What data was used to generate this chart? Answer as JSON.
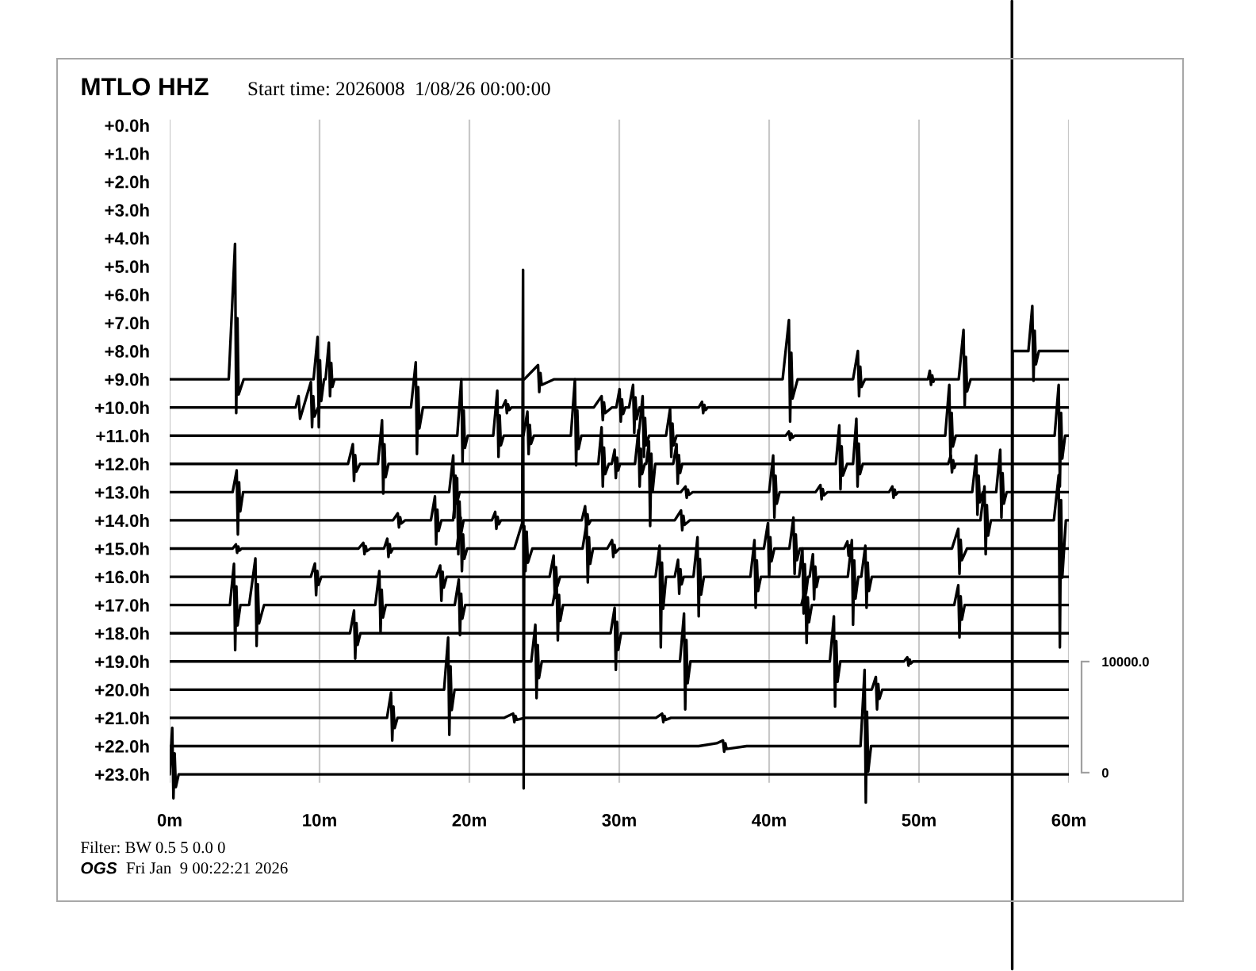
{
  "chart_data": {
    "type": "line",
    "title": "MTLO HHZ",
    "subtitle": "Start time: 2026008  1/08/26 00:00:00",
    "annotations": [
      "Filter: BW 0.5 5 0.0 0",
      "OGS",
      "Fri Jan  9 00:22:21 2026"
    ],
    "xlim": [
      0,
      60
    ],
    "xticks": [
      {
        "value": 0,
        "label": "0m"
      },
      {
        "value": 10,
        "label": "10m"
      },
      {
        "value": 20,
        "label": "20m"
      },
      {
        "value": 30,
        "label": "30m"
      },
      {
        "value": 40,
        "label": "40m"
      },
      {
        "value": 50,
        "label": "50m"
      },
      {
        "value": 60,
        "label": "60m"
      }
    ],
    "ylim": [
      29.97,
      -4.44
    ],
    "yticks": [
      {
        "value": 0,
        "label": "+0.0h"
      },
      {
        "value": 1,
        "label": "+1.0h"
      },
      {
        "value": 2,
        "label": "+2.0h"
      },
      {
        "value": 3,
        "label": "+3.0h"
      },
      {
        "value": 4,
        "label": "+4.0h"
      },
      {
        "value": 5,
        "label": "+5.0h"
      },
      {
        "value": 6,
        "label": "+6.0h"
      },
      {
        "value": 7,
        "label": "+7.0h"
      },
      {
        "value": 8,
        "label": "+8.0h"
      },
      {
        "value": 9,
        "label": "+9.0h"
      },
      {
        "value": 10,
        "label": "+10.0h"
      },
      {
        "value": 11,
        "label": "+11.0h"
      },
      {
        "value": 12,
        "label": "+12.0h"
      },
      {
        "value": 13,
        "label": "+13.0h"
      },
      {
        "value": 14,
        "label": "+14.0h"
      },
      {
        "value": 15,
        "label": "+15.0h"
      },
      {
        "value": 16,
        "label": "+16.0h"
      },
      {
        "value": 17,
        "label": "+17.0h"
      },
      {
        "value": 18,
        "label": "+18.0h"
      },
      {
        "value": 19,
        "label": "+19.0h"
      },
      {
        "value": 20,
        "label": "+20.0h"
      },
      {
        "value": 21,
        "label": "+21.0h"
      },
      {
        "value": 22,
        "label": "+22.0h"
      },
      {
        "value": 23,
        "label": "+23.0h"
      }
    ],
    "y2lim": [
      -17860,
      69570
    ],
    "y2ticks": [
      0,
      {
        "value": 10000,
        "label": "10000.0"
      }
    ],
    "grid": "x",
    "series": [
      {
        "color": "#000000",
        "x": [
          56.2,
          56.22,
          56.25,
          56.3,
          57.3,
          57.56,
          57.64,
          57.72,
          57.8,
          58.0,
          60
        ],
        "values": [
          -4.4,
          29.9,
          8,
          8,
          8,
          6.4,
          9.05,
          7.28,
          8.47,
          8,
          8
        ]
      },
      {
        "color": "#000000",
        "x": [
          0,
          3.94,
          4.36,
          4.44,
          4.52,
          4.6,
          4.94,
          9.6,
          9.87,
          9.95,
          10.03,
          10.11,
          10.3,
          10.4,
          10.62,
          10.7,
          10.78,
          10.86,
          11.0,
          23.66,
          24.58,
          24.66,
          24.74,
          24.82,
          25.66,
          40.9,
          41.32,
          41.4,
          41.48,
          41.56,
          41.9,
          45.6,
          45.92,
          46.0,
          46.08,
          46.16,
          46.4,
          50.6,
          50.72,
          50.8,
          50.88,
          50.96,
          51.0,
          52.65,
          52.97,
          53.05,
          53.13,
          53.21,
          53.45,
          60
        ],
        "values": [
          9,
          9,
          4.2,
          10.2,
          6.84,
          9.54,
          9,
          9,
          7.5,
          10.7,
          8.33,
          9.77,
          9,
          9,
          7.7,
          9.6,
          8.42,
          9.27,
          9,
          9,
          8.5,
          9.45,
          8.78,
          9.2,
          9,
          9,
          6.9,
          10.5,
          8.06,
          9.68,
          9,
          9,
          8.0,
          9.6,
          8.55,
          9.27,
          9,
          9,
          8.7,
          9.2,
          8.86,
          9.09,
          9,
          9,
          7.25,
          9.95,
          8.21,
          9.43,
          9,
          9
        ]
      },
      {
        "color": "#000000",
        "x": [
          0,
          8.4,
          8.6,
          8.7,
          9.42,
          9.5,
          9.58,
          9.66,
          9.9,
          16.1,
          16.42,
          16.5,
          16.58,
          16.66,
          16.9,
          22.2,
          22.42,
          22.5,
          22.58,
          22.66,
          22.8,
          28.3,
          28.82,
          28.9,
          28.98,
          29.06,
          29.5,
          29.8,
          30.02,
          30.1,
          30.18,
          30.26,
          30.4,
          30.65,
          30.92,
          31.0,
          31.08,
          31.16,
          31.35,
          35.3,
          35.52,
          35.6,
          35.68,
          35.76,
          35.9,
          60
        ],
        "values": [
          10,
          10,
          9.6,
          10.4,
          9.1,
          10.7,
          9.6,
          10.32,
          10,
          10,
          8.4,
          11.65,
          9.28,
          10.74,
          10,
          10,
          9.75,
          10.2,
          9.89,
          10.09,
          10,
          10,
          9.6,
          10.45,
          9.82,
          10.2,
          10,
          10,
          9.35,
          10.5,
          9.71,
          10.23,
          10,
          10,
          9.2,
          10.9,
          9.64,
          10.41,
          10,
          10,
          9.8,
          10.2,
          9.91,
          10.09,
          10,
          10
        ]
      },
      {
        "color": "#000000",
        "x": [
          0,
          19.19,
          19.46,
          19.54,
          19.62,
          19.7,
          19.89,
          21.59,
          21.86,
          21.94,
          22.02,
          22.1,
          22.29,
          23.6,
          23.87,
          23.95,
          24.03,
          24.11,
          24.3,
          26.77,
          27.04,
          27.12,
          27.2,
          27.28,
          27.47,
          31.29,
          31.56,
          31.64,
          31.72,
          31.8,
          31.99,
          33.12,
          33.39,
          33.47,
          33.55,
          33.63,
          33.82,
          41.1,
          41.32,
          41.4,
          41.48,
          41.56,
          41.7,
          51.75,
          52.02,
          52.1,
          52.18,
          52.26,
          52.45,
          59.05,
          59.32,
          59.4,
          59.48,
          59.56,
          59.75,
          60
        ],
        "values": [
          11,
          11,
          9.0,
          11.95,
          10.1,
          11.43,
          11,
          11,
          9.4,
          11.75,
          10.28,
          11.34,
          11,
          11,
          10.15,
          11.65,
          10.62,
          11.29,
          11,
          11,
          9.0,
          12.05,
          10.1,
          11.47,
          11,
          11,
          9.6,
          11.75,
          10.37,
          11.34,
          11,
          11,
          10.05,
          11.75,
          10.57,
          11.34,
          11,
          11,
          10.85,
          11.15,
          10.93,
          11.07,
          11,
          11,
          9.2,
          11.85,
          10.19,
          11.38,
          11,
          11,
          9.2,
          12.8,
          10.19,
          11.81,
          11,
          11
        ]
      },
      {
        "color": "#000000",
        "x": [
          0,
          11.9,
          12.22,
          12.3,
          12.38,
          12.46,
          12.7,
          13.9,
          14.17,
          14.25,
          14.33,
          14.41,
          14.6,
          28.6,
          28.82,
          28.9,
          28.98,
          29.06,
          29.3,
          29.5,
          29.69,
          29.77,
          29.85,
          29.93,
          30.05,
          31.05,
          31.28,
          31.36,
          31.44,
          31.52,
          31.7,
          31.8,
          31.98,
          32.06,
          32.14,
          32.22,
          32.4,
          33.6,
          33.82,
          33.9,
          33.98,
          34.06,
          34.2,
          44.45,
          44.68,
          44.76,
          44.84,
          44.92,
          45.2,
          45.6,
          45.82,
          45.9,
          45.98,
          46.06,
          46.25,
          51.95,
          52.12,
          52.2,
          52.28,
          52.36,
          52.45,
          60
        ],
        "values": [
          12,
          12,
          11.3,
          12.6,
          11.69,
          12.27,
          12,
          12,
          10.45,
          13.05,
          11.3,
          12.47,
          12,
          12,
          10.7,
          12.8,
          11.42,
          12.36,
          12,
          12,
          11.5,
          12.5,
          11.78,
          12.23,
          12,
          12,
          10.8,
          12.8,
          11.46,
          12.36,
          12,
          12,
          11.2,
          14.2,
          11.64,
          12.99,
          12,
          12,
          11.3,
          12.7,
          11.69,
          12.32,
          12,
          12,
          10.63,
          12.9,
          11.38,
          12.41,
          12,
          12,
          10.4,
          12.8,
          11.28,
          12.36,
          12,
          12,
          11.7,
          12.3,
          11.87,
          12.14,
          12,
          12
        ]
      },
      {
        "color": "#000000",
        "x": [
          0,
          4.2,
          4.47,
          4.55,
          4.63,
          4.71,
          4.9,
          18.65,
          18.92,
          19.0,
          19.08,
          19.16,
          19.35,
          34.1,
          34.42,
          34.5,
          34.58,
          34.66,
          34.9,
          40.0,
          40.27,
          40.35,
          40.43,
          40.51,
          40.7,
          43.1,
          43.42,
          43.5,
          43.58,
          43.66,
          43.9,
          48.0,
          48.22,
          48.3,
          48.38,
          48.46,
          48.6,
          53.55,
          53.82,
          53.9,
          53.98,
          54.06,
          54.25,
          55.15,
          55.42,
          55.5,
          55.58,
          55.66,
          55.85,
          60
        ],
        "values": [
          13,
          13,
          12.23,
          14.5,
          12.65,
          13.68,
          13,
          13,
          11.7,
          13.9,
          12.42,
          13.41,
          13,
          13,
          12.8,
          13.2,
          12.91,
          13.09,
          13,
          13,
          11.7,
          13.9,
          12.42,
          13.41,
          13,
          13,
          12.75,
          13.25,
          12.89,
          13.11,
          13,
          13,
          12.8,
          13.2,
          12.91,
          13.09,
          13,
          13,
          11.7,
          13.8,
          12.42,
          13.36,
          13,
          13,
          11.5,
          13.9,
          12.33,
          13.41,
          13,
          13
        ]
      },
      {
        "color": "#000000",
        "x": [
          0,
          14.9,
          15.22,
          15.3,
          15.38,
          15.46,
          15.7,
          17.43,
          17.7,
          17.78,
          17.86,
          17.94,
          18.13,
          18.91,
          19.18,
          19.26,
          19.34,
          19.42,
          19.61,
          21.5,
          21.72,
          21.8,
          21.88,
          21.96,
          22.1,
          27.5,
          27.72,
          27.8,
          27.88,
          27.96,
          28.1,
          33.7,
          34.12,
          34.2,
          34.28,
          34.36,
          34.7,
          54.1,
          54.37,
          54.45,
          54.53,
          54.61,
          54.8,
          59.0,
          59.32,
          59.4,
          59.48,
          59.56,
          59.8,
          60
        ],
        "values": [
          14,
          14,
          13.75,
          14.25,
          13.89,
          14.11,
          14,
          14,
          13.15,
          14.85,
          13.62,
          14.38,
          14,
          14,
          12.5,
          15.2,
          13.33,
          14.54,
          14,
          14,
          13.7,
          14.3,
          13.87,
          14.14,
          14,
          14,
          13.5,
          14.3,
          13.78,
          14.14,
          14,
          14,
          13.65,
          14.35,
          13.84,
          14.16,
          14,
          14,
          12.8,
          15.2,
          13.46,
          14.54,
          14,
          14,
          12.4,
          18.5,
          13.28,
          16.03,
          14,
          14
        ]
      },
      {
        "color": "#000000",
        "x": [
          0,
          4.2,
          4.42,
          4.5,
          4.58,
          4.66,
          4.8,
          12.6,
          12.92,
          13.0,
          13.08,
          13.16,
          13.4,
          14.3,
          14.52,
          14.6,
          14.68,
          14.76,
          14.9,
          19.15,
          19.42,
          19.5,
          19.58,
          19.66,
          19.85,
          23.0,
          23.52,
          23.58,
          23.62,
          23.66,
          23.74,
          23.82,
          23.9,
          24.2,
          27.55,
          27.82,
          27.9,
          27.98,
          28.06,
          28.25,
          29.2,
          29.52,
          29.6,
          29.68,
          29.76,
          30.0,
          39.65,
          39.92,
          40.0,
          40.08,
          40.16,
          40.35,
          41.35,
          41.62,
          41.7,
          41.78,
          41.86,
          42.05,
          45.0,
          45.22,
          45.3,
          45.38,
          45.46,
          45.6,
          52.2,
          52.62,
          52.7,
          52.78,
          52.86,
          53.2,
          60
        ],
        "values": [
          15,
          15,
          14.85,
          15.15,
          14.93,
          15.07,
          15,
          15,
          14.8,
          15.2,
          14.91,
          15.09,
          15,
          15,
          14.65,
          15.3,
          14.84,
          15.14,
          15,
          15,
          13.9,
          15.8,
          14.5,
          15.36,
          15,
          15,
          14.1,
          5.12,
          23.5,
          14.2,
          15.8,
          14.4,
          15.5,
          15,
          15,
          14.1,
          16.2,
          14.6,
          15.54,
          15,
          15,
          14.7,
          15.3,
          14.87,
          15.14,
          15,
          15,
          14.1,
          16.0,
          14.6,
          15.45,
          15,
          15,
          13.9,
          15.9,
          14.5,
          15.41,
          15,
          15,
          14.75,
          15.25,
          14.89,
          15.11,
          15,
          15,
          14.3,
          15.9,
          14.69,
          15.41,
          15,
          15
        ]
      },
      {
        "color": "#000000",
        "x": [
          0,
          9.42,
          9.69,
          9.77,
          9.85,
          9.93,
          10.12,
          17.78,
          18.05,
          18.13,
          18.21,
          18.29,
          18.48,
          25.35,
          25.62,
          25.7,
          25.78,
          25.86,
          26.05,
          32.42,
          32.69,
          32.77,
          32.85,
          32.93,
          33.12,
          33.7,
          33.92,
          34.0,
          34.08,
          34.16,
          34.3,
          34.95,
          35.22,
          35.3,
          35.38,
          35.46,
          35.65,
          38.75,
          39.02,
          39.1,
          39.18,
          39.26,
          39.45,
          42.0,
          42.22,
          42.3,
          42.38,
          42.46,
          42.6,
          42.7,
          42.92,
          43.0,
          43.08,
          43.16,
          43.3,
          45.25,
          45.52,
          45.6,
          45.68,
          45.76,
          45.95,
          46.15,
          46.42,
          46.5,
          46.58,
          46.66,
          46.85,
          60
        ],
        "values": [
          16,
          16,
          15.53,
          16.65,
          15.79,
          16.29,
          16,
          16,
          15.6,
          16.85,
          15.82,
          16.38,
          16,
          16,
          15.25,
          16.75,
          15.66,
          16.34,
          16,
          16,
          14.9,
          18.5,
          15.5,
          17.13,
          16,
          16,
          15.4,
          16.6,
          15.73,
          16.27,
          16,
          16,
          14.6,
          17.4,
          15.37,
          16.63,
          16,
          16,
          14.7,
          17.1,
          15.42,
          16.5,
          16,
          16,
          15.0,
          17.3,
          15.55,
          16.59,
          16,
          16,
          15.2,
          16.8,
          15.64,
          16.36,
          16,
          16,
          14.7,
          17.7,
          15.42,
          16.77,
          16,
          16,
          14.9,
          17.1,
          15.5,
          16.5,
          16,
          16
        ]
      },
      {
        "color": "#000000",
        "x": [
          0,
          4.02,
          4.29,
          4.37,
          4.45,
          4.53,
          4.72,
          5.3,
          5.72,
          5.8,
          5.88,
          5.96,
          6.3,
          13.72,
          13.99,
          14.07,
          14.15,
          14.23,
          14.42,
          19.02,
          19.29,
          19.37,
          19.45,
          19.53,
          19.72,
          25.55,
          25.82,
          25.9,
          25.98,
          26.06,
          26.25,
          42.15,
          42.42,
          42.5,
          42.58,
          42.66,
          42.85,
          52.35,
          52.62,
          52.7,
          52.78,
          52.86,
          53.05,
          60
        ],
        "values": [
          17,
          17,
          15.54,
          18.6,
          16.34,
          17.72,
          17,
          17,
          15.35,
          18.45,
          16.26,
          17.65,
          17,
          17,
          15.8,
          17.97,
          16.46,
          17.44,
          17,
          17,
          16.1,
          18.07,
          16.6,
          17.48,
          17,
          17,
          16.2,
          18.25,
          16.64,
          17.56,
          17,
          17,
          16.4,
          18.35,
          16.73,
          17.61,
          17,
          17,
          16.3,
          18.15,
          16.69,
          17.52,
          17,
          17
        ]
      },
      {
        "color": "#000000",
        "x": [
          0,
          12.03,
          12.3,
          12.38,
          12.46,
          12.54,
          12.73,
          29.42,
          29.69,
          29.77,
          29.85,
          29.93,
          30.12,
          60
        ],
        "values": [
          18,
          18,
          17.2,
          18.9,
          17.64,
          18.41,
          18,
          18,
          17.1,
          19.3,
          17.6,
          18.59,
          18,
          18
        ]
      },
      {
        "color": "#000000",
        "x": [
          0,
          24.13,
          24.4,
          24.48,
          24.56,
          24.64,
          24.83,
          34.05,
          34.32,
          34.4,
          34.48,
          34.56,
          34.75,
          44.05,
          44.32,
          44.4,
          44.48,
          44.56,
          44.75,
          49.0,
          49.22,
          49.3,
          49.38,
          49.46,
          49.6,
          60
        ],
        "values": [
          19,
          19,
          17.7,
          20.3,
          18.42,
          19.59,
          19,
          19,
          17.3,
          20.7,
          18.24,
          19.77,
          19,
          19,
          17.4,
          20.6,
          18.28,
          19.72,
          19,
          19,
          18.85,
          19.15,
          18.93,
          19.07,
          19,
          19
        ]
      },
      {
        "color": "#000000",
        "x": [
          0,
          18.31,
          18.58,
          18.66,
          18.74,
          18.82,
          19.01,
          46.85,
          47.12,
          47.2,
          47.28,
          47.36,
          47.55,
          60
        ],
        "values": [
          20,
          20,
          18.15,
          21.6,
          19.17,
          20.72,
          20,
          20,
          19.55,
          20.7,
          19.8,
          20.32,
          20,
          20
        ]
      },
      {
        "color": "#000000",
        "x": [
          0,
          14.5,
          14.77,
          14.85,
          14.93,
          15.01,
          15.2,
          22.3,
          22.92,
          23.0,
          23.08,
          23.16,
          23.7,
          32.45,
          32.86,
          32.94,
          33.02,
          33.1,
          33.45,
          60
        ],
        "values": [
          21,
          21,
          20.1,
          21.8,
          20.6,
          21.36,
          21,
          21,
          20.85,
          21.15,
          20.93,
          21.07,
          21,
          21,
          20.85,
          21.15,
          20.93,
          21.07,
          21,
          21
        ]
      },
      {
        "color": "#000000",
        "x": [
          0,
          35.3,
          36.5,
          36.92,
          37.0,
          37.08,
          37.16,
          38.5,
          46.1,
          46.37,
          46.45,
          46.53,
          46.61,
          46.8,
          60
        ],
        "values": [
          22,
          22,
          21.9,
          21.8,
          22.2,
          21.9,
          22.1,
          22,
          22,
          19.3,
          24.0,
          20.78,
          22.9,
          22,
          22
        ]
      },
      {
        "color": "#000000",
        "x": [
          0,
          0.17,
          0.25,
          0.33,
          0.41,
          0.6,
          60
        ],
        "values": [
          23,
          21.35,
          23.85,
          22.26,
          23.45,
          23,
          23
        ]
      }
    ]
  }
}
